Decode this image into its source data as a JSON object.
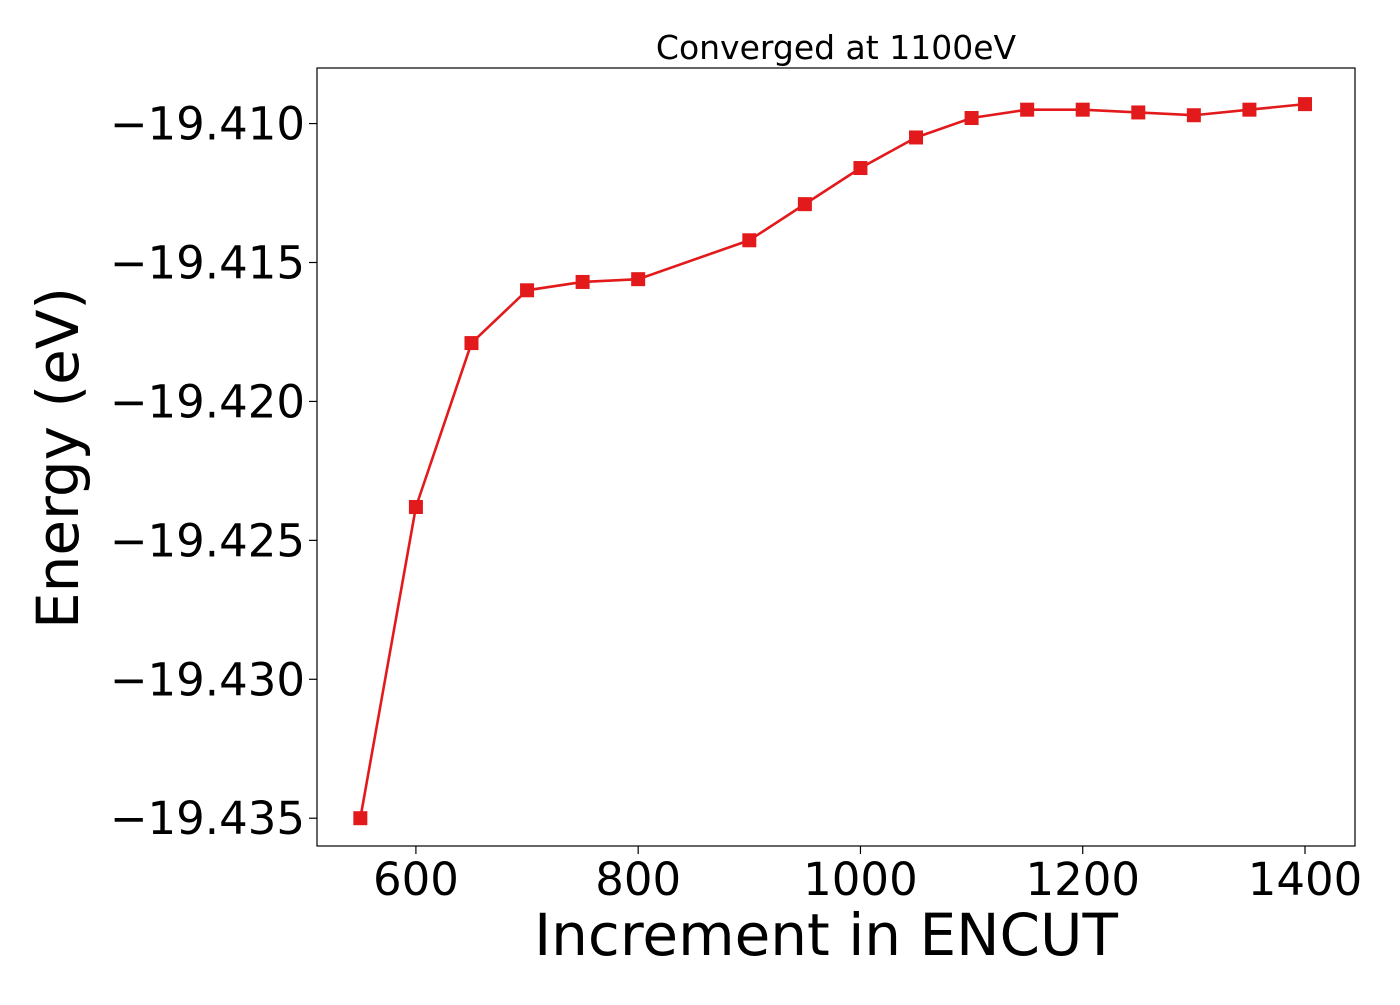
{
  "chart_data": {
    "type": "line",
    "title": "Converged at 1100eV",
    "xlabel": "Increment in ENCUT",
    "ylabel": "Energy (eV)",
    "xlim": [
      511,
      1445
    ],
    "ylim": [
      -19.436,
      -19.408
    ],
    "grid": false,
    "x_ticks": [
      600,
      800,
      1000,
      1200,
      1400
    ],
    "x_tick_labels": [
      "600",
      "800",
      "1000",
      "1200",
      "1400"
    ],
    "y_ticks": [
      -19.41,
      -19.415,
      -19.42,
      -19.425,
      -19.43,
      -19.435
    ],
    "y_tick_labels": [
      "−19.410",
      "−19.415",
      "−19.420",
      "−19.425",
      "−19.430",
      "−19.435"
    ],
    "series": [
      {
        "color": "#e31a1c",
        "marker": "square",
        "x": [
          550,
          600,
          650,
          700,
          750,
          800,
          900,
          950,
          1000,
          1050,
          1100,
          1150,
          1200,
          1250,
          1300,
          1350,
          1400
        ],
        "y": [
          -19.435,
          -19.4238,
          -19.4179,
          -19.416,
          -19.4157,
          -19.4156,
          -19.4142,
          -19.4129,
          -19.4116,
          -19.4105,
          -19.4098,
          -19.4095,
          -19.4095,
          -19.4096,
          -19.4097,
          -19.4095,
          -19.4093
        ]
      }
    ]
  }
}
